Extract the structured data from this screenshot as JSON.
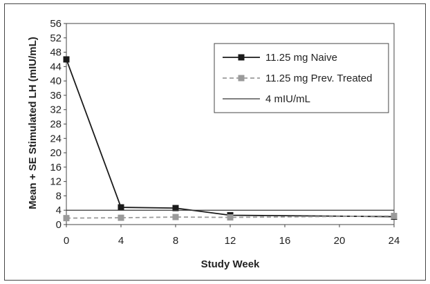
{
  "chart_data": {
    "type": "line",
    "xlabel": "Study Week",
    "ylabel": "Mean + SE Stimulated LH (mIU/mL)",
    "xlim": [
      0,
      24
    ],
    "ylim": [
      0,
      56
    ],
    "x_ticks": [
      0,
      4,
      8,
      12,
      16,
      20,
      24
    ],
    "y_ticks": [
      0,
      4,
      8,
      12,
      16,
      20,
      24,
      28,
      32,
      36,
      40,
      44,
      48,
      52,
      56
    ],
    "grid": false,
    "legend_position": "top-right",
    "series": [
      {
        "name": "11.25 mg Naive",
        "x": [
          0,
          4,
          8,
          12,
          24
        ],
        "y": [
          46,
          4.8,
          4.6,
          2.6,
          2.2
        ],
        "color": "#1a1a1a",
        "marker": "square",
        "line_style": "solid"
      },
      {
        "name": "11.25 mg Prev. Treated",
        "x": [
          0,
          4,
          8,
          12,
          24
        ],
        "y": [
          1.8,
          1.9,
          2.1,
          2.0,
          2.4
        ],
        "color": "#9a9a9a",
        "marker": "square",
        "line_style": "dashed"
      },
      {
        "name": "4 mIU/mL",
        "x": [
          0,
          24
        ],
        "y": [
          4,
          4
        ],
        "color": "#333333",
        "marker": "none",
        "line_style": "solid"
      }
    ]
  }
}
